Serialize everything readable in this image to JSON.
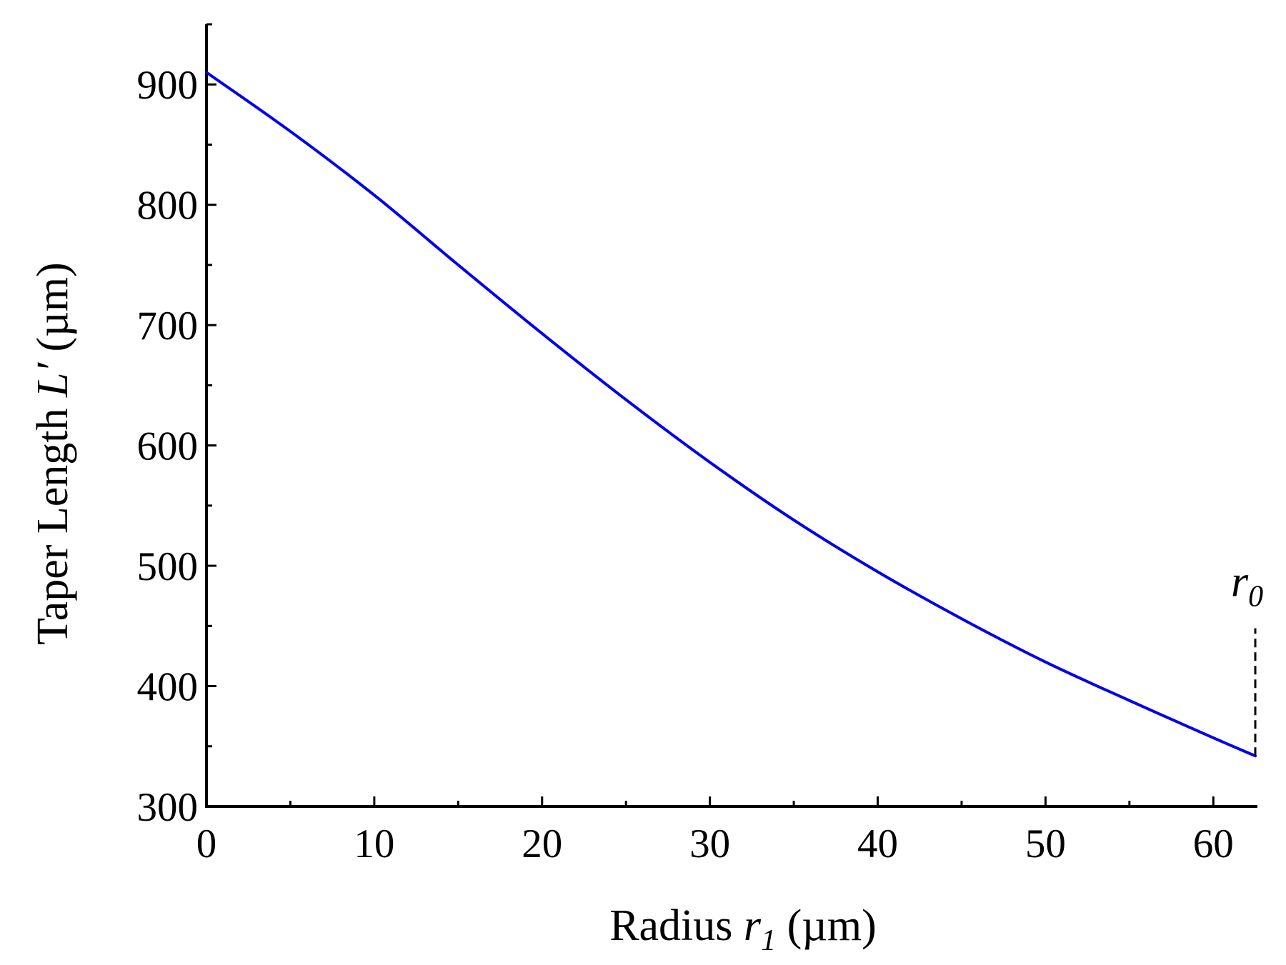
{
  "chart_data": {
    "type": "line",
    "xlabel": {
      "prefix": "Radius ",
      "var": "r",
      "sub": "1",
      "suffix": " (µm)"
    },
    "ylabel": {
      "prefix": "Taper Length ",
      "var": "L′",
      "suffix": " (µm)"
    },
    "xlim": [
      0,
      62.5
    ],
    "ylim": [
      300,
      950
    ],
    "x_ticks": [
      0,
      10,
      20,
      30,
      40,
      50,
      60
    ],
    "x_tick_labels": [
      "0",
      "10",
      "20",
      "30",
      "40",
      "50",
      "60"
    ],
    "x_minor_ticks": [
      5,
      15,
      25,
      35,
      45,
      55
    ],
    "y_ticks": [
      300,
      400,
      500,
      600,
      700,
      800,
      900
    ],
    "y_tick_labels": [
      "300",
      "400",
      "500",
      "600",
      "700",
      "800",
      "900"
    ],
    "y_minor_ticks": [
      350,
      450,
      550,
      650,
      750,
      850,
      950
    ],
    "grid": false,
    "series": [
      {
        "color": "#0000ee",
        "x": [
          0,
          5,
          10,
          15,
          20,
          25,
          30,
          35,
          40,
          45,
          50,
          55,
          60,
          62.5
        ],
        "y": [
          910,
          861,
          808,
          750,
          693,
          638,
          586,
          538,
          495,
          456,
          420,
          388,
          357,
          342
        ]
      }
    ],
    "annotations": [
      {
        "var": "r",
        "sub": "0",
        "x": 62.5,
        "line_from_y": 342,
        "line_to_y": 448,
        "style": "dashed"
      }
    ]
  }
}
